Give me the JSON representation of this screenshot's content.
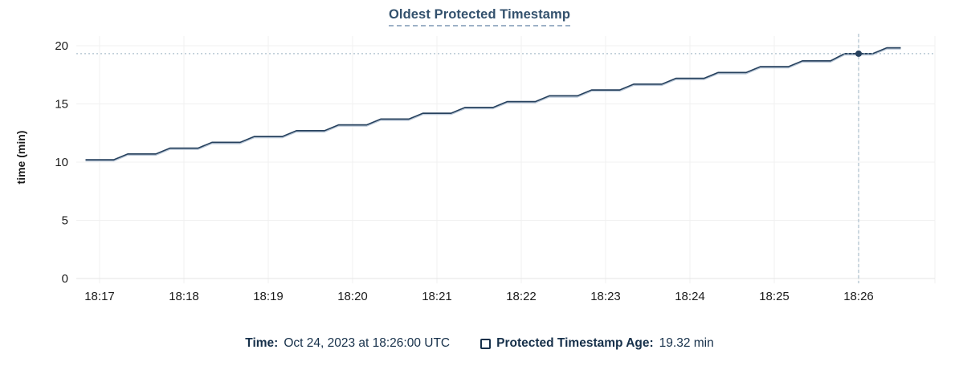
{
  "page": {
    "title": "Oldest Protected Timestamp"
  },
  "legend": {
    "time_label": "Time:",
    "time_value": "Oct 24, 2023 at 18:26:00 UTC",
    "series_label": "Protected Timestamp Age:",
    "series_value": "19.32 min",
    "series_checkbox_checked": false
  },
  "colors": {
    "line": "#26415e",
    "line_shadow": "#b5c4d5",
    "dot": "#26415e",
    "title_text": "#33516d",
    "title_underline": "#9db1c7",
    "legend_text": "#16304a",
    "axis_text": "#1c1c1c",
    "gridline": "#f0f0f0",
    "zero_line": "#e4e4e4",
    "crosshair": "#9ab2c2",
    "background": "#ffffff"
  },
  "chart_data": {
    "type": "line",
    "title": "Oldest Protected Timestamp",
    "xlabel": "",
    "ylabel": "time (min)",
    "ylim": [
      0,
      20
    ],
    "yticks": [
      0,
      5,
      10,
      15,
      20
    ],
    "xticks": [
      "18:17",
      "18:18",
      "18:19",
      "18:20",
      "18:21",
      "18:22",
      "18:23",
      "18:24",
      "18:25",
      "18:26"
    ],
    "grid": true,
    "legend_position": "bottom",
    "hover": {
      "t": "18:26:00",
      "v": 19.32
    },
    "series": [
      {
        "name": "Protected Timestamp Age",
        "unit": "min",
        "points": [
          {
            "t": "18:16:50",
            "v": 10.2
          },
          {
            "t": "18:17:00",
            "v": 10.2
          },
          {
            "t": "18:17:10",
            "v": 10.2
          },
          {
            "t": "18:17:20",
            "v": 10.7
          },
          {
            "t": "18:17:30",
            "v": 10.7
          },
          {
            "t": "18:17:40",
            "v": 10.7
          },
          {
            "t": "18:17:50",
            "v": 11.2
          },
          {
            "t": "18:18:00",
            "v": 11.2
          },
          {
            "t": "18:18:10",
            "v": 11.2
          },
          {
            "t": "18:18:20",
            "v": 11.7
          },
          {
            "t": "18:18:30",
            "v": 11.7
          },
          {
            "t": "18:18:40",
            "v": 11.7
          },
          {
            "t": "18:18:50",
            "v": 12.2
          },
          {
            "t": "18:19:00",
            "v": 12.2
          },
          {
            "t": "18:19:10",
            "v": 12.2
          },
          {
            "t": "18:19:20",
            "v": 12.7
          },
          {
            "t": "18:19:30",
            "v": 12.7
          },
          {
            "t": "18:19:40",
            "v": 12.7
          },
          {
            "t": "18:19:50",
            "v": 13.2
          },
          {
            "t": "18:20:00",
            "v": 13.2
          },
          {
            "t": "18:20:10",
            "v": 13.2
          },
          {
            "t": "18:20:20",
            "v": 13.7
          },
          {
            "t": "18:20:30",
            "v": 13.7
          },
          {
            "t": "18:20:40",
            "v": 13.7
          },
          {
            "t": "18:20:50",
            "v": 14.2
          },
          {
            "t": "18:21:00",
            "v": 14.2
          },
          {
            "t": "18:21:10",
            "v": 14.2
          },
          {
            "t": "18:21:20",
            "v": 14.7
          },
          {
            "t": "18:21:30",
            "v": 14.7
          },
          {
            "t": "18:21:40",
            "v": 14.7
          },
          {
            "t": "18:21:50",
            "v": 15.2
          },
          {
            "t": "18:22:00",
            "v": 15.2
          },
          {
            "t": "18:22:10",
            "v": 15.2
          },
          {
            "t": "18:22:20",
            "v": 15.7
          },
          {
            "t": "18:22:30",
            "v": 15.7
          },
          {
            "t": "18:22:40",
            "v": 15.7
          },
          {
            "t": "18:22:50",
            "v": 16.2
          },
          {
            "t": "18:23:00",
            "v": 16.2
          },
          {
            "t": "18:23:10",
            "v": 16.2
          },
          {
            "t": "18:23:20",
            "v": 16.7
          },
          {
            "t": "18:23:30",
            "v": 16.7
          },
          {
            "t": "18:23:40",
            "v": 16.7
          },
          {
            "t": "18:23:50",
            "v": 17.2
          },
          {
            "t": "18:24:00",
            "v": 17.2
          },
          {
            "t": "18:24:10",
            "v": 17.2
          },
          {
            "t": "18:24:20",
            "v": 17.7
          },
          {
            "t": "18:24:30",
            "v": 17.7
          },
          {
            "t": "18:24:40",
            "v": 17.7
          },
          {
            "t": "18:24:50",
            "v": 18.2
          },
          {
            "t": "18:25:00",
            "v": 18.2
          },
          {
            "t": "18:25:10",
            "v": 18.2
          },
          {
            "t": "18:25:20",
            "v": 18.7
          },
          {
            "t": "18:25:30",
            "v": 18.7
          },
          {
            "t": "18:25:40",
            "v": 18.7
          },
          {
            "t": "18:25:50",
            "v": 19.32
          },
          {
            "t": "18:26:00",
            "v": 19.32
          },
          {
            "t": "18:26:10",
            "v": 19.32
          },
          {
            "t": "18:26:20",
            "v": 19.82
          },
          {
            "t": "18:26:30",
            "v": 19.82
          }
        ]
      }
    ]
  }
}
